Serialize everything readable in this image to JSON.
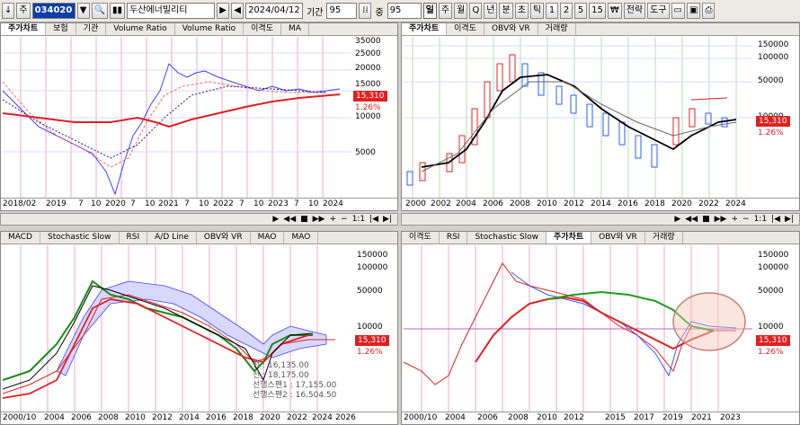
{
  "toolbar": {
    "arrow_left": "↓",
    "main_label": "주",
    "stock_code": "034020",
    "stock_name": "두산에너빌리티",
    "date": "2024/04/12",
    "period_label": "기간",
    "period_value": "95",
    "jung_label": "중",
    "jung_value": "95",
    "intervals": [
      "일",
      "주",
      "월",
      "Q",
      "년",
      "분",
      "초",
      "틱",
      "1",
      "2",
      "5",
      "15"
    ],
    "won": "₩",
    "strategy": "전략",
    "tools": "도구"
  },
  "panes": {
    "top_left": {
      "tabs": [
        "주가차트",
        "보험",
        "기관",
        "Volume Ratio",
        "Volume Ratio",
        "이격도",
        "MA"
      ],
      "yticks": [
        "35000",
        "25000",
        "20000",
        "15000",
        "10000",
        "5000"
      ],
      "price": "15,310",
      "pct": "1.26%",
      "xticks": [
        "2018/02",
        "2019",
        "7",
        "10",
        "2020",
        "7",
        "10",
        "2021",
        "7",
        "10",
        "2022",
        "7",
        "10",
        "2023",
        "7",
        "10",
        "2024"
      ]
    },
    "top_right": {
      "tabs": [
        "주가차트",
        "이격도",
        "OBV와 VR",
        "거래량"
      ],
      "yticks": [
        "150000",
        "100000",
        "50000",
        "10000"
      ],
      "price": "15,310",
      "pct": "1.26%",
      "xticks": [
        "2000",
        "2002",
        "2004",
        "2006",
        "2008",
        "2010",
        "2012",
        "2014",
        "2016",
        "2018",
        "2020",
        "2022",
        "2024"
      ]
    },
    "bottom_left": {
      "tabs": [
        "MACD",
        "Stochastic Slow",
        "RSI",
        "A/D Line",
        "OBV와 VR",
        "MAO",
        "MAO"
      ],
      "yticks": [
        "150000",
        "100000",
        "50000",
        "10000"
      ],
      "price": "15,310",
      "pct": "1.26%",
      "legend": [
        "선 : 16,135.00",
        "선 : 18,175.00",
        "선행스팬1 : 17,155.00",
        "선행스팬2 : 16,504.50"
      ],
      "xticks": [
        "2000/10",
        "2004",
        "2006",
        "2008",
        "2010",
        "2012",
        "2014",
        "2016",
        "2018",
        "2020",
        "2022",
        "2024",
        "2026"
      ]
    },
    "bottom_right": {
      "tabs": [
        "이격도",
        "RSI",
        "Stochastic Slow",
        "주가차트",
        "OBV와 VR",
        "거래량"
      ],
      "yticks": [
        "150000",
        "100000",
        "50000",
        "10000"
      ],
      "price": "15,310",
      "pct": "1.26%",
      "xticks": [
        "2000/10",
        "2004",
        "2006",
        "2008",
        "2010",
        "2012",
        "2015",
        "2017",
        "2019",
        "2021",
        "2023"
      ]
    }
  },
  "scroll": {
    "ratio": "1:1"
  }
}
